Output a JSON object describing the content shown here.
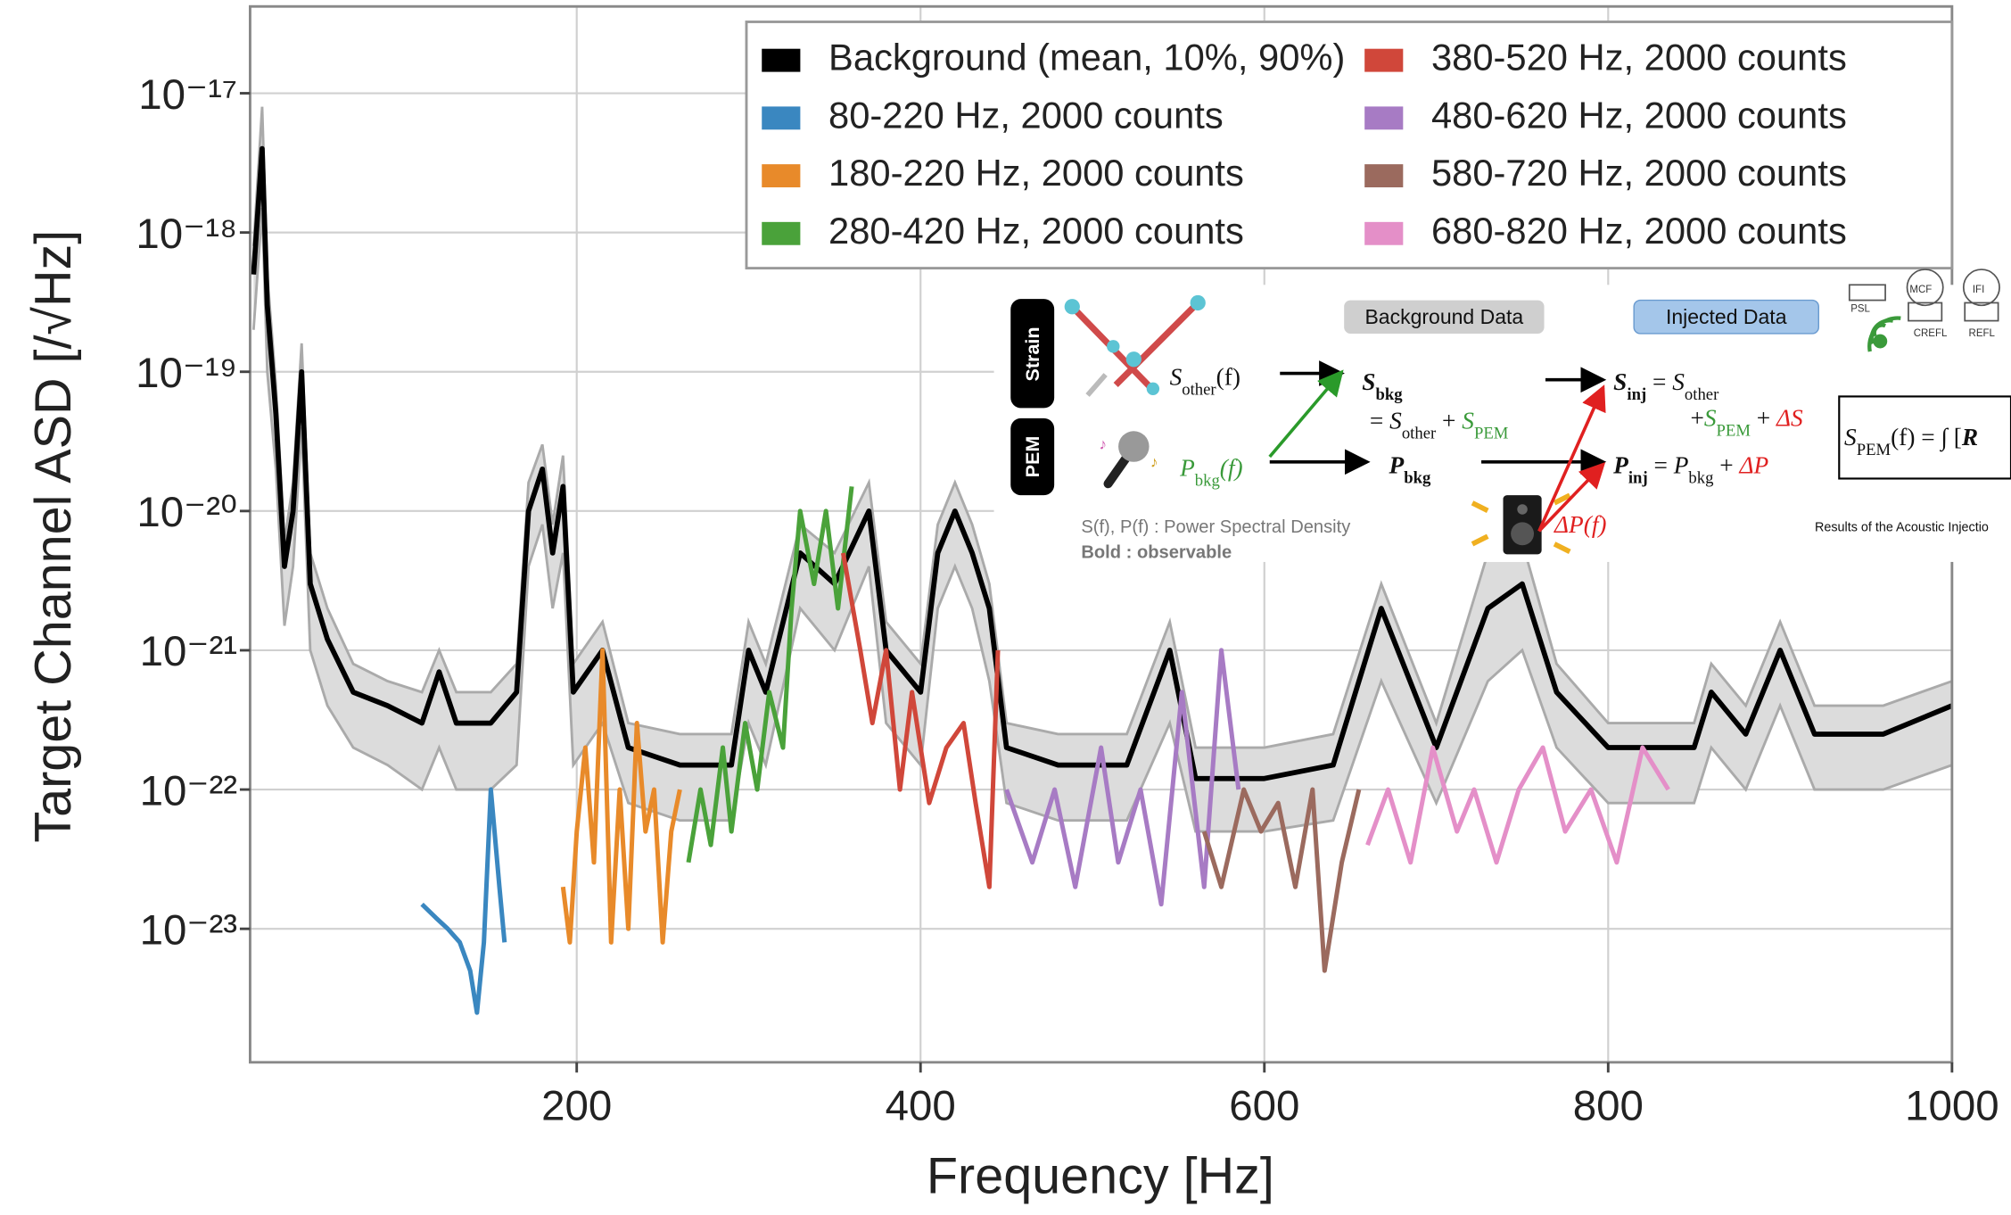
{
  "chart_data": {
    "type": "line",
    "xlabel": "Frequency [Hz]",
    "ylabel": "Target Channel ASD [/√Hz]",
    "xlim": [
      10,
      1000
    ],
    "xticks": [
      200,
      400,
      600,
      800,
      1000
    ],
    "ylim": [
      1.1e-24,
      4.2e-17
    ],
    "log_y": true,
    "grid": true,
    "legend": "upper right",
    "yticks": [
      {
        "value": 1e-17,
        "label": "10⁻¹⁷"
      },
      {
        "value": 1e-18,
        "label": "10⁻¹⁸"
      },
      {
        "value": 1e-19,
        "label": "10⁻¹⁹"
      },
      {
        "value": 1e-20,
        "label": "10⁻²⁰"
      },
      {
        "value": 1e-21,
        "label": "10⁻²¹"
      },
      {
        "value": 1e-22,
        "label": "10⁻²²"
      },
      {
        "value": 1e-23,
        "label": "10⁻²³"
      }
    ],
    "series": [
      {
        "name": "Background (mean, 10%, 90%)",
        "color": "#000000",
        "band_color": "#dcdcdc",
        "x": [
          12,
          17,
          20,
          25,
          30,
          35,
          40,
          45,
          55,
          70,
          90,
          110,
          120,
          130,
          150,
          165,
          172,
          180,
          186,
          192,
          198,
          215,
          230,
          260,
          290,
          300,
          310,
          330,
          350,
          370,
          380,
          400,
          410,
          420,
          430,
          440,
          450,
          480,
          520,
          545,
          560,
          600,
          640,
          668,
          700,
          730,
          750,
          770,
          800,
          850,
          860,
          880,
          900,
          920,
          960,
          1000
        ],
        "values": [
          5e-19,
          4e-18,
          3e-19,
          5e-20,
          4e-21,
          1e-20,
          1e-19,
          3e-21,
          1.2e-21,
          5e-22,
          4e-22,
          3e-22,
          7e-22,
          3e-22,
          3e-22,
          5e-22,
          1e-20,
          2e-20,
          5e-21,
          1.5e-20,
          5e-22,
          1e-21,
          2e-22,
          1.5e-22,
          1.5e-22,
          1e-21,
          5e-22,
          5e-21,
          3e-21,
          1e-20,
          1e-21,
          5e-22,
          5e-21,
          1e-20,
          5e-21,
          2e-21,
          2e-22,
          1.5e-22,
          1.5e-22,
          1e-21,
          1.2e-22,
          1.2e-22,
          1.5e-22,
          2e-21,
          2e-22,
          2e-21,
          3e-21,
          5e-22,
          2e-22,
          2e-22,
          5e-22,
          2.5e-22,
          1e-21,
          2.5e-22,
          2.5e-22,
          4e-22
        ],
        "p90": [
          8e-19,
          8e-18,
          5e-19,
          8e-20,
          6e-21,
          1.6e-20,
          1.6e-19,
          5e-21,
          2e-21,
          8e-22,
          6e-22,
          5e-22,
          1e-21,
          5e-22,
          5e-22,
          8e-22,
          1.6e-20,
          3e-20,
          8e-21,
          2.5e-20,
          8e-22,
          1.6e-21,
          3e-22,
          2.5e-22,
          2.5e-22,
          1.6e-21,
          8e-22,
          8e-21,
          5e-21,
          1.6e-20,
          1.6e-21,
          8e-22,
          8e-21,
          1.6e-20,
          8e-21,
          3e-21,
          3e-22,
          2.5e-22,
          2.5e-22,
          1.6e-21,
          2e-22,
          2e-22,
          2.5e-22,
          3e-21,
          3e-22,
          5e-21,
          6e-21,
          8e-22,
          3e-22,
          3e-22,
          8e-22,
          4e-22,
          1.6e-21,
          4e-22,
          4e-22,
          6e-22
        ],
        "p10": [
          2e-19,
          1.5e-18,
          1e-19,
          2e-20,
          1.5e-21,
          4e-21,
          4e-20,
          1e-21,
          4e-22,
          2e-22,
          1.5e-22,
          1e-22,
          2e-22,
          1e-22,
          1e-22,
          1.5e-22,
          4e-21,
          8e-21,
          2e-21,
          5e-21,
          1.5e-22,
          3e-22,
          8e-23,
          6e-23,
          6e-23,
          3e-22,
          1.5e-22,
          2e-21,
          1e-21,
          4e-21,
          3e-22,
          1.5e-22,
          2e-21,
          4e-21,
          2e-21,
          6e-22,
          8e-23,
          6e-23,
          6e-23,
          3e-22,
          5e-23,
          5e-23,
          6e-23,
          6e-22,
          8e-23,
          6e-22,
          1e-21,
          2e-22,
          8e-23,
          8e-23,
          2e-22,
          1e-22,
          4e-22,
          1e-22,
          1e-22,
          1.5e-22
        ]
      },
      {
        "name": "80-220 Hz, 2000 counts",
        "color": "#3a87c0",
        "x": [
          110,
          118,
          125,
          132,
          138,
          142,
          146,
          150,
          155,
          158
        ],
        "values": [
          1.5e-23,
          1.2e-23,
          1e-23,
          8e-24,
          5e-24,
          2.5e-24,
          8e-24,
          1e-22,
          2e-23,
          8e-24
        ]
      },
      {
        "name": "180-220 Hz, 2000 counts",
        "color": "#e88a2a",
        "x": [
          192,
          196,
          200,
          205,
          210,
          215,
          220,
          225,
          230,
          235,
          240,
          245,
          250,
          255,
          260
        ],
        "values": [
          2e-23,
          8e-24,
          5e-23,
          2e-22,
          3e-23,
          1e-21,
          8e-24,
          1e-22,
          1e-23,
          3e-22,
          5e-23,
          1e-22,
          8e-24,
          5e-23,
          1e-22
        ]
      },
      {
        "name": "280-420 Hz, 2000 counts",
        "color": "#4aa23a",
        "x": [
          265,
          272,
          278,
          285,
          290,
          298,
          305,
          312,
          320,
          325,
          330,
          338,
          345,
          352,
          360
        ],
        "values": [
          3e-23,
          1e-22,
          4e-23,
          2e-22,
          5e-23,
          3e-22,
          1e-22,
          5e-22,
          2e-22,
          2e-21,
          1e-20,
          3e-21,
          1e-20,
          2e-21,
          1.5e-20
        ]
      },
      {
        "name": "380-520 Hz, 2000 counts",
        "color": "#d0473a",
        "x": [
          355,
          365,
          372,
          380,
          388,
          395,
          405,
          415,
          425,
          432,
          440,
          445
        ],
        "values": [
          5e-21,
          1e-21,
          3e-22,
          1e-21,
          1e-22,
          5e-22,
          8e-23,
          2e-22,
          3e-22,
          8e-23,
          2e-23,
          1e-21
        ]
      },
      {
        "name": "480-620 Hz, 2000 counts",
        "color": "#a77bc4",
        "x": [
          450,
          465,
          478,
          490,
          505,
          515,
          528,
          540,
          552,
          565,
          575,
          585
        ],
        "values": [
          1e-22,
          3e-23,
          1e-22,
          2e-23,
          2e-22,
          3e-23,
          1e-22,
          1.5e-23,
          5e-22,
          2e-23,
          1e-21,
          1e-22
        ]
      },
      {
        "name": "580-720 Hz, 2000 counts",
        "color": "#9b6a5e",
        "x": [
          565,
          575,
          588,
          598,
          608,
          618,
          628,
          635,
          645,
          655
        ],
        "values": [
          5e-23,
          2e-23,
          1e-22,
          5e-23,
          8e-23,
          2e-23,
          1e-22,
          5e-24,
          3e-23,
          1e-22
        ]
      },
      {
        "name": "680-820 Hz, 2000 counts",
        "color": "#e48fc8",
        "x": [
          660,
          672,
          685,
          698,
          712,
          722,
          735,
          748,
          762,
          775,
          790,
          805,
          820,
          835
        ],
        "values": [
          4e-23,
          1e-22,
          3e-23,
          2e-22,
          5e-23,
          1e-22,
          3e-23,
          1e-22,
          2e-22,
          5e-23,
          1e-22,
          3e-23,
          2e-22,
          1e-22
        ]
      }
    ]
  },
  "inset": {
    "strain": "Strain",
    "pem": "PEM",
    "background": "Background Data",
    "injected": "Injected Data",
    "psd_note": "S(f), P(f) : Power Spectral Density",
    "bold_note": "Bold : observable",
    "results": "Results of the Acoustic Injectio",
    "detector_labels": [
      "PSL",
      "MCF",
      "IFI",
      "CREFL",
      "REFL"
    ],
    "formulas": [
      [
        {
          "text": "S",
          "sub": "other"
        },
        "(f)"
      ],
      [
        {
          "text": "S",
          "sub": "bkg",
          "bold": true
        }
      ],
      [
        "= ",
        {
          "text": "S",
          "sub": "other"
        },
        " + ",
        {
          "text": "S",
          "sub": "PEM",
          "color": "#3a9a3a"
        }
      ],
      [
        {
          "text": "S",
          "sub": "inj",
          "bold": true
        },
        " = ",
        {
          "text": "S",
          "sub": "other"
        }
      ],
      [
        "+",
        {
          "text": "S",
          "sub": "PEM",
          "color": "#3a9a3a"
        },
        " + ",
        {
          "text": "ΔS",
          "color": "#e02020"
        }
      ],
      [
        {
          "text": "P",
          "sub": "bkg",
          "color": "#3a9a3a"
        },
        {
          "text": "(f)",
          "color": "#3a9a3a"
        }
      ],
      [
        {
          "text": "P",
          "sub": "bkg",
          "bold": true
        }
      ],
      [
        {
          "text": "P",
          "sub": "inj",
          "bold": true
        },
        " = ",
        {
          "text": "P",
          "sub": "bkg"
        },
        " + ",
        {
          "text": "ΔP",
          "color": "#e02020"
        }
      ],
      [
        {
          "text": "ΔP(f)",
          "color": "#e02020"
        }
      ],
      [
        {
          "text": "S",
          "sub": "PEM"
        },
        "(f) = ∫ [",
        {
          "text": "R",
          "bold": true
        }
      ]
    ]
  }
}
